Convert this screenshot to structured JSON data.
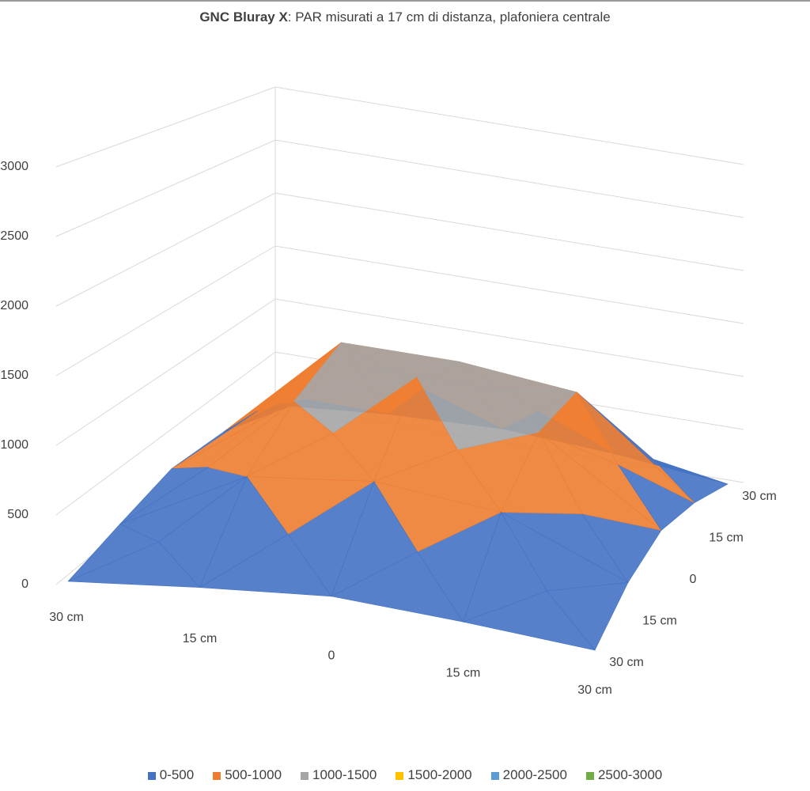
{
  "chart_data": {
    "type": "surface",
    "title_bold": "GNC Bluray X",
    "title_rest": ": PAR misurati a 17 cm di distanza, plafoniera centrale",
    "x_ticks": [
      "30 cm",
      "15 cm",
      "0",
      "15 cm",
      "30 cm"
    ],
    "y_ticks": [
      "30 cm",
      "15 cm",
      "0",
      "15 cm",
      "30 cm"
    ],
    "z_ticks": [
      "0",
      "500",
      "1000",
      "1500",
      "2000",
      "2500",
      "3000"
    ],
    "z_range": [
      0,
      3000
    ],
    "values": [
      [
        0,
        80,
        140,
        80,
        0
      ],
      [
        100,
        600,
        700,
        600,
        200
      ],
      [
        200,
        900,
        1250,
        950,
        300
      ],
      [
        150,
        1100,
        1100,
        1000,
        200
      ],
      [
        0,
        100,
        150,
        100,
        0
      ]
    ],
    "legend": [
      {
        "label": "0-500",
        "color": "#4472C4"
      },
      {
        "label": "500-1000",
        "color": "#ED7D31"
      },
      {
        "label": "1000-1500",
        "color": "#A5A5A5"
      },
      {
        "label": "1500-2000",
        "color": "#FFC000"
      },
      {
        "label": "2000-2500",
        "color": "#5B9BD5"
      },
      {
        "label": "2500-3000",
        "color": "#70AD47"
      }
    ]
  }
}
